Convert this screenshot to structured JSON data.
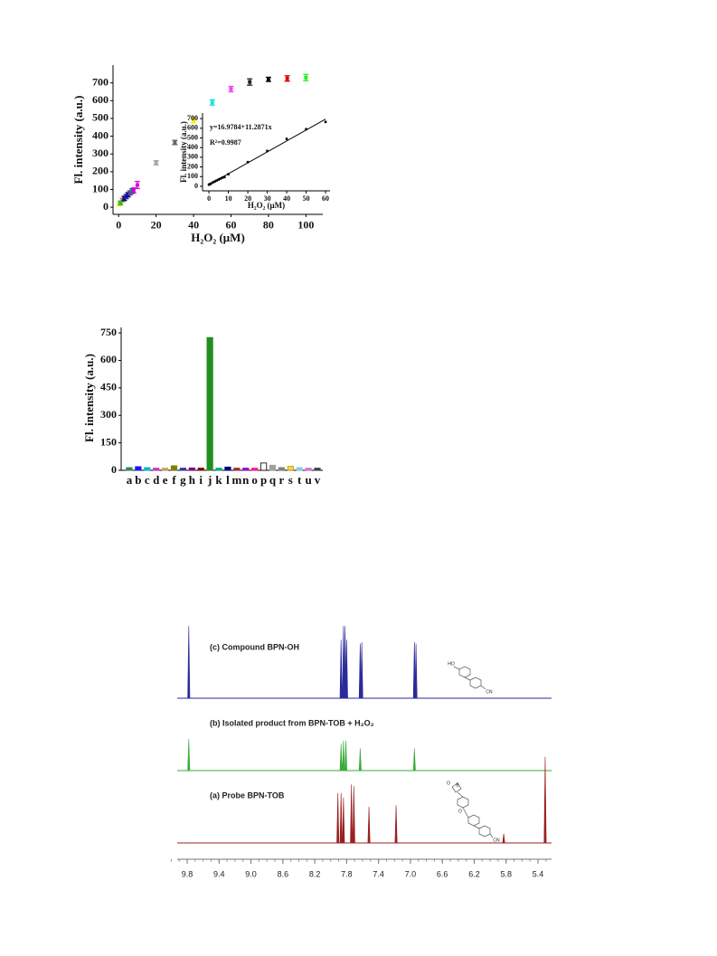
{
  "chart_data": [
    {
      "type": "scatter",
      "xlabel": "H₂O₂ (μM)",
      "ylabel": "Fl. intensity (a.u.)",
      "x": [
        0.5,
        1,
        2,
        3,
        4,
        5,
        6,
        7,
        8,
        10,
        20,
        30,
        40,
        50,
        60,
        70,
        80,
        90,
        100
      ],
      "values": [
        17,
        25,
        40,
        50,
        60,
        70,
        80,
        90,
        95,
        125,
        250,
        365,
        490,
        590,
        665,
        705,
        720,
        725,
        730
      ],
      "errors": [
        10,
        10,
        10,
        12,
        12,
        12,
        12,
        14,
        14,
        20,
        12,
        12,
        15,
        15,
        15,
        18,
        12,
        15,
        18
      ],
      "colors": [
        "#e6e600",
        "#22bb22",
        "#888888",
        "#111111",
        "#2222dd",
        "#000080",
        "#7b2d8e",
        "#008b8b",
        "#cc00cc",
        "#dd00dd",
        "#a8a8a8",
        "#666666",
        "#f0f000",
        "#22dddd",
        "#ee44ee",
        "#222222",
        "#111111",
        "#dd0000",
        "#22ee22"
      ],
      "xlim": [
        -3,
        109
      ],
      "ylim": [
        -40,
        800
      ],
      "xticks": [
        0,
        20,
        40,
        60,
        80,
        100
      ],
      "yticks": [
        0,
        100,
        200,
        300,
        400,
        500,
        600,
        700
      ],
      "inset": {
        "type": "scatter",
        "xlabel": "H₂O₂ (μM)",
        "ylabel": "Fl. intensity (a.u.)",
        "x": [
          0,
          0.5,
          1,
          2,
          3,
          4,
          5,
          6,
          7,
          8,
          10,
          20,
          30,
          40,
          50,
          60
        ],
        "values": [
          17,
          22,
          28,
          40,
          50,
          60,
          70,
          80,
          90,
          95,
          125,
          250,
          365,
          490,
          590,
          665
        ],
        "color": "#000000",
        "fit": {
          "intercept": 16.9784,
          "slope": 11.2871
        },
        "equation_label": "y=16.9784+11.2871x",
        "r2_label": "R²=0.9987",
        "xlim": [
          -3.3,
          62.3
        ],
        "ylim": [
          -47,
          757
        ],
        "xticks": [
          0,
          10,
          20,
          30,
          40,
          50,
          60
        ],
        "yticks": [
          0,
          100,
          200,
          300,
          400,
          500,
          600,
          700
        ]
      }
    },
    {
      "type": "bar",
      "ylabel": "Fl. intensity (a.u.)",
      "categories": [
        "a",
        "b",
        "c",
        "d",
        "e",
        "f",
        "g",
        "h",
        "i",
        "j",
        "k",
        "l",
        "m",
        "n",
        "o",
        "p",
        "q",
        "r",
        "s",
        "t",
        "u",
        "v"
      ],
      "values": [
        15,
        20,
        15,
        12,
        12,
        25,
        12,
        13,
        12,
        725,
        12,
        18,
        12,
        12,
        12,
        40,
        28,
        15,
        22,
        15,
        12,
        12
      ],
      "colors": [
        "#2e8b57",
        "#1a1aee",
        "#00bfbf",
        "#cc33cc",
        "#c8a060",
        "#808000",
        "#333399",
        "#800080",
        "#800000",
        "#1f8f1f",
        "#00aa88",
        "#000080",
        "#a52a2a",
        "#9400d3",
        "#ff1493",
        "#ffffff",
        "#a0a0a0",
        "#808080",
        "#f5d060",
        "#87ceeb",
        "#da70d6",
        "#404040"
      ],
      "ylim": [
        0,
        780
      ],
      "yticks": [
        0,
        150,
        300,
        450,
        600,
        750
      ]
    },
    {
      "type": "spectrum",
      "xlim": [
        9.925,
        5.23
      ],
      "xticks": [
        9.8,
        9.4,
        {
          "value": 9,
          "label": "9.0"
        },
        8.6,
        8.2,
        7.8,
        7.4,
        {
          "value": 7,
          "label": "7.0"
        },
        6.6,
        6.2,
        5.8,
        5.4
      ],
      "ylim": [
        0,
        100
      ],
      "series": [
        {
          "name": "(c)  Compound BPN-OH",
          "color": "#2a2a9a",
          "x": [
            9.78,
            7.87,
            7.84,
            7.82,
            7.8,
            7.63,
            7.61,
            6.95,
            6.93
          ],
          "values": [
            94,
            76,
            94,
            94,
            76,
            71,
            73,
            73,
            71
          ]
        },
        {
          "name": "(b)  Isolated product from BPN-TOB + H₂O₂",
          "color": "#3aaa3a",
          "x": [
            9.78,
            7.87,
            7.84,
            7.81,
            7.63,
            6.95
          ],
          "values": [
            41,
            35,
            39,
            39,
            29,
            29
          ]
        },
        {
          "name": "(a)  Probe  BPN-TOB",
          "color": "#9a2020",
          "x": [
            7.91,
            7.87,
            7.84,
            7.74,
            7.71,
            7.52,
            7.18,
            5.83,
            5.31
          ],
          "values": [
            65,
            65,
            59,
            76,
            74,
            47,
            49,
            12,
            112
          ]
        }
      ],
      "structure_labels": [
        "HO",
        "CN",
        "O",
        "B",
        "O",
        "CN"
      ]
    }
  ]
}
